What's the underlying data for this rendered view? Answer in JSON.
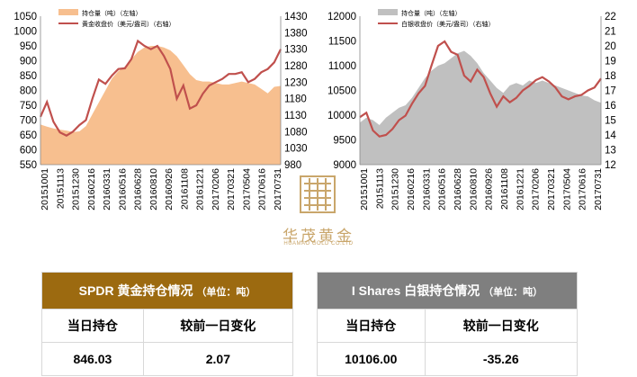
{
  "chart_data": [
    {
      "type": "area+line",
      "legend": [
        "持仓量（吨）（左轴）",
        "黄金收盘价（美元/盎司）（右轴）"
      ],
      "left_axis": {
        "min": 550,
        "max": 1050,
        "ticks": [
          550,
          600,
          650,
          700,
          750,
          800,
          850,
          900,
          950,
          1000,
          1050
        ]
      },
      "right_axis": {
        "min": 980,
        "max": 1430,
        "ticks": [
          980,
          1030,
          1080,
          1130,
          1180,
          1230,
          1280,
          1330,
          1380,
          1430
        ]
      },
      "x_labels": [
        "20151001",
        "20151113",
        "20151230",
        "20160216",
        "20160331",
        "20160516",
        "20160628",
        "20160810",
        "20160926",
        "20161108",
        "20161221",
        "20170206",
        "20170321",
        "20170504",
        "20170616",
        "20170731"
      ],
      "holdings": [
        685,
        678,
        672,
        668,
        665,
        660,
        662,
        680,
        720,
        760,
        800,
        840,
        865,
        880,
        905,
        930,
        945,
        950,
        950,
        945,
        935,
        915,
        885,
        855,
        835,
        830,
        830,
        825,
        820,
        820,
        825,
        830,
        825,
        820,
        805,
        790,
        812,
        815
      ],
      "price": [
        1125,
        1170,
        1110,
        1078,
        1068,
        1080,
        1100,
        1115,
        1180,
        1238,
        1225,
        1250,
        1270,
        1272,
        1300,
        1355,
        1340,
        1330,
        1340,
        1310,
        1270,
        1180,
        1220,
        1150,
        1160,
        1195,
        1220,
        1230,
        1240,
        1255,
        1255,
        1260,
        1230,
        1240,
        1260,
        1270,
        1290,
        1330
      ]
    },
    {
      "type": "area+line",
      "legend": [
        "持仓量（吨）（左轴）",
        "白银收盘价（美元/盎司）（右轴）"
      ],
      "left_axis": {
        "min": 9000,
        "max": 12000,
        "ticks": [
          9000,
          9500,
          10000,
          10500,
          11000,
          11500,
          12000
        ]
      },
      "right_axis": {
        "min": 12,
        "max": 22,
        "ticks": [
          12,
          13,
          14,
          15,
          16,
          17,
          18,
          19,
          20,
          21,
          22
        ]
      },
      "x_labels": [
        "20151001",
        "20151113",
        "20151230",
        "20160216",
        "20160331",
        "20160516",
        "20160628",
        "20160810",
        "20160926",
        "20161108",
        "20161221",
        "20170206",
        "20170321",
        "20170504",
        "20170616",
        "20170731"
      ],
      "holdings": [
        9850,
        9950,
        9900,
        9800,
        9950,
        10050,
        10150,
        10200,
        10350,
        10550,
        10750,
        10900,
        11000,
        11050,
        11150,
        11250,
        11300,
        11200,
        11050,
        10850,
        10700,
        10550,
        10450,
        10600,
        10650,
        10600,
        10700,
        10650,
        10700,
        10650,
        10600,
        10550,
        10500,
        10450,
        10400,
        10380,
        10300,
        10250
      ],
      "price": [
        15.2,
        15.5,
        14.3,
        13.9,
        14.0,
        14.4,
        15.0,
        15.3,
        16.1,
        16.8,
        17.3,
        18.7,
        20.0,
        20.3,
        19.6,
        19.4,
        18.0,
        17.6,
        18.4,
        17.9,
        16.8,
        15.9,
        16.6,
        16.2,
        16.5,
        17.0,
        17.3,
        17.7,
        17.9,
        17.6,
        17.2,
        16.6,
        16.4,
        16.6,
        16.7,
        17.0,
        17.2,
        17.8
      ]
    }
  ],
  "logo": {
    "cn": "华茂黄金",
    "en": "HUAMAO GOLD CO.LTD"
  },
  "gold_panel": {
    "title": "SPDR 黄金持仓情况",
    "unit": "（单位：吨）",
    "col1": "当日持仓",
    "col2": "较前一日变化",
    "holding": "846.03",
    "change": "2.07",
    "header_color": "#9c6a10"
  },
  "silver_panel": {
    "title": "I Shares 白银持仓情况",
    "unit": "（单位：吨）",
    "col1": "当日持仓",
    "col2": "较前一日变化",
    "holding": "10106.00",
    "change": "-35.26",
    "header_color": "#7f7f7f"
  }
}
